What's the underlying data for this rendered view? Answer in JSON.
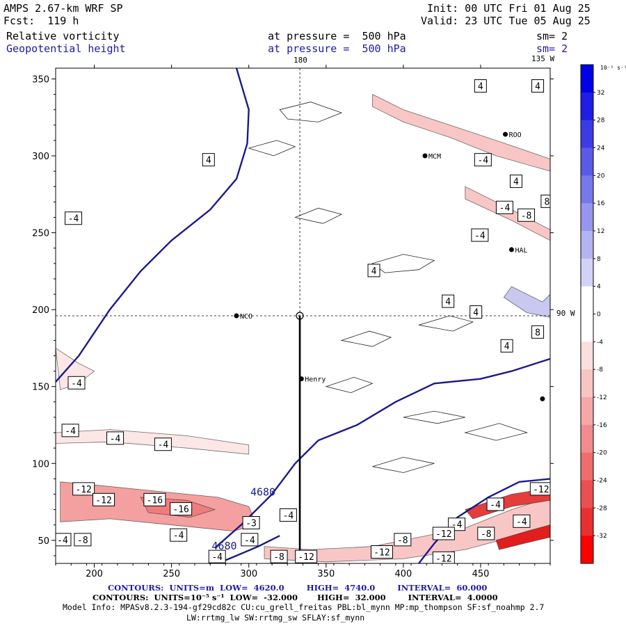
{
  "header": {
    "model": "AMPS 2.67-km WRF SP",
    "fcst": "Fcst:  119 h",
    "init": "Init: 00 UTC Fri 01 Aug 25",
    "valid": "Valid: 23 UTC Tue 05 Aug 25",
    "field1_name": "Relative vorticity",
    "field1_level": "at pressure =  500 hPa",
    "field1_sm": "sm= 2",
    "field2_name": "Geopotential height",
    "field2_level": "at pressure =  500 hPa",
    "field2_sm": "sm= 2"
  },
  "map_labels": {
    "lon_180": "180",
    "lon_135": "135 W",
    "lon_90": "90 W",
    "stations": [
      {
        "name": "NCO",
        "x": 292,
        "y": 196
      },
      {
        "name": "Henry",
        "x": 334,
        "y": 155
      },
      {
        "name": "MCM",
        "x": 414,
        "y": 300
      },
      {
        "name": "ROO",
        "x": 466,
        "y": 314
      },
      {
        "name": "HAL",
        "x": 470,
        "y": 239
      },
      {
        "name": "",
        "x": 490,
        "y": 142
      }
    ]
  },
  "colorbar": {
    "unit": "10⁻⁵ s⁻¹",
    "labels": [
      "32",
      "28",
      "24",
      "20",
      "16",
      "12",
      "8",
      "4",
      "0",
      "-4",
      "-8",
      "-12",
      "-16",
      "-20",
      "-24",
      "-28",
      "-32"
    ],
    "colors": [
      "#0000e6",
      "#1e1ee6",
      "#3c3ce6",
      "#5a5ae6",
      "#7878ea",
      "#9696ee",
      "#b4b4f2",
      "#d2d2f8",
      "#ffffff",
      "#ffffff",
      "#fbdede",
      "#f8c4c4",
      "#f5a8a8",
      "#f28c8c",
      "#ee6e6e",
      "#eb4f4f",
      "#e83030",
      "#ff0000"
    ]
  },
  "footer": {
    "line1": "CONTOURS:  UNITS=m  LOW=  4620.0        HIGH=  4740.0        INTERVAL=  60.000",
    "line2": "CONTOURS:  UNITS=10⁻⁵ s⁻¹  LOW=  -32.000       HIGH=  32.000        INTERVAL=  4.0000",
    "line3": "Model Info: MPASv8.2.3-194-gf29cd82c CU:cu_grell_freitas PBL:bl_mynn MP:mp_thompson SF:sf_noahmp 2.7",
    "line4": "LW:rrtmg_lw SW:rrtmg_sw SFLAY:sf_mynn"
  },
  "chart_data": {
    "type": "contour",
    "x_ticks": [
      200,
      250,
      300,
      350,
      400,
      450
    ],
    "y_ticks": [
      50,
      100,
      150,
      200,
      250,
      300,
      350
    ],
    "xlim": [
      175,
      495
    ],
    "ylim": [
      35,
      357
    ],
    "crosshair": {
      "x": 333,
      "y": 196
    },
    "height_contours": [
      {
        "label": "4680",
        "points": [
          [
            175,
            153
          ],
          [
            190,
            170
          ],
          [
            210,
            200
          ],
          [
            230,
            225
          ],
          [
            250,
            245
          ],
          [
            275,
            265
          ],
          [
            292,
            285
          ],
          [
            299,
            308
          ],
          [
            300,
            330
          ],
          [
            292,
            357
          ]
        ]
      },
      {
        "label": "4680",
        "points": [
          [
            278,
            45
          ],
          [
            295,
            60
          ],
          [
            315,
            80
          ],
          [
            330,
            100
          ],
          [
            345,
            115
          ],
          [
            370,
            125
          ],
          [
            395,
            140
          ],
          [
            420,
            152
          ],
          [
            450,
            155
          ],
          [
            470,
            160
          ],
          [
            495,
            168
          ]
        ]
      },
      {
        "label": "4680",
        "points": [
          [
            410,
            35
          ],
          [
            420,
            48
          ],
          [
            435,
            65
          ],
          [
            455,
            78
          ],
          [
            475,
            88
          ],
          [
            495,
            90
          ]
        ]
      },
      {
        "label": "4620",
        "points": [
          [
            280,
            35
          ],
          [
            292,
            40
          ],
          [
            306,
            46
          ],
          [
            320,
            53
          ]
        ]
      }
    ],
    "contour_labels": [
      {
        "v": "4",
        "x": 271,
        "y": 297
      },
      {
        "v": "-4",
        "x": 182,
        "y": 259
      },
      {
        "v": "-4",
        "x": 184,
        "y": 152
      },
      {
        "v": "-4",
        "x": 180,
        "y": 121
      },
      {
        "v": "-4",
        "x": 209,
        "y": 116
      },
      {
        "v": "-4",
        "x": 240,
        "y": 112
      },
      {
        "v": "-12",
        "x": 187,
        "y": 83
      },
      {
        "v": "-12",
        "x": 200,
        "y": 76
      },
      {
        "v": "-16",
        "x": 233,
        "y": 76
      },
      {
        "v": "-16",
        "x": 250,
        "y": 70
      },
      {
        "v": "-3",
        "x": 297,
        "y": 61
      },
      {
        "v": "-4",
        "x": 321,
        "y": 66
      },
      {
        "v": "-4",
        "x": 175,
        "y": 50
      },
      {
        "v": "-8",
        "x": 188,
        "y": 50
      },
      {
        "v": "-4",
        "x": 250,
        "y": 53
      },
      {
        "v": "-4",
        "x": 296,
        "y": 50
      },
      {
        "v": "-4",
        "x": 275,
        "y": 39
      },
      {
        "v": "-8",
        "x": 315,
        "y": 39
      },
      {
        "v": "-12",
        "x": 331,
        "y": 39
      },
      {
        "v": "-12",
        "x": 380,
        "y": 42
      },
      {
        "v": "-8",
        "x": 395,
        "y": 50
      },
      {
        "v": "-4",
        "x": 430,
        "y": 60
      },
      {
        "v": "-12",
        "x": 420,
        "y": 54
      },
      {
        "v": "-8",
        "x": 449,
        "y": 54
      },
      {
        "v": "-4",
        "x": 455,
        "y": 73
      },
      {
        "v": "-4",
        "x": 472,
        "y": 62
      },
      {
        "v": "-12",
        "x": 483,
        "y": 83
      },
      {
        "v": "-12",
        "x": 420,
        "y": 38
      },
      {
        "v": "4",
        "x": 378,
        "y": 225
      },
      {
        "v": "4",
        "x": 426,
        "y": 205
      },
      {
        "v": "4",
        "x": 444,
        "y": 198
      },
      {
        "v": "4",
        "x": 464,
        "y": 176
      },
      {
        "v": "8",
        "x": 484,
        "y": 185
      },
      {
        "v": "-4",
        "x": 445,
        "y": 248
      },
      {
        "v": "-4",
        "x": 461,
        "y": 266
      },
      {
        "v": "-8",
        "x": 475,
        "y": 261
      },
      {
        "v": "-4",
        "x": 502,
        "y": 255
      },
      {
        "v": "-4",
        "x": 527,
        "y": 246
      },
      {
        "v": "8",
        "x": 490,
        "y": 270
      },
      {
        "v": "4",
        "x": 470,
        "y": 283
      },
      {
        "v": "-4",
        "x": 447,
        "y": 297
      },
      {
        "v": "4",
        "x": 447,
        "y": 345
      },
      {
        "v": "4",
        "x": 484,
        "y": 345
      },
      {
        "v": "-4",
        "x": 540,
        "y": 248
      }
    ],
    "vorticity_bands": [
      {
        "value": -12,
        "points": [
          [
            178,
            88
          ],
          [
            200,
            86
          ],
          [
            240,
            82
          ],
          [
            280,
            78
          ],
          [
            300,
            72
          ],
          [
            305,
            60
          ],
          [
            290,
            56
          ],
          [
            250,
            60
          ],
          [
            210,
            64
          ],
          [
            178,
            62
          ]
        ]
      },
      {
        "value": -16,
        "points": [
          [
            230,
            78
          ],
          [
            260,
            76
          ],
          [
            278,
            70
          ],
          [
            262,
            65
          ],
          [
            235,
            68
          ]
        ]
      },
      {
        "value": -8,
        "points": [
          [
            310,
            46
          ],
          [
            340,
            44
          ],
          [
            380,
            46
          ],
          [
            410,
            52
          ],
          [
            440,
            58
          ],
          [
            470,
            70
          ],
          [
            495,
            78
          ],
          [
            495,
            60
          ],
          [
            470,
            52
          ],
          [
            440,
            44
          ],
          [
            400,
            38
          ],
          [
            350,
            36
          ],
          [
            310,
            38
          ]
        ]
      },
      {
        "value": -24,
        "points": [
          [
            440,
            70
          ],
          [
            470,
            80
          ],
          [
            495,
            84
          ],
          [
            495,
            76
          ],
          [
            470,
            72
          ],
          [
            445,
            64
          ]
        ]
      },
      {
        "value": -28,
        "points": [
          [
            460,
            50
          ],
          [
            480,
            56
          ],
          [
            495,
            60
          ],
          [
            495,
            52
          ],
          [
            478,
            48
          ],
          [
            462,
            44
          ]
        ]
      },
      {
        "value": -8,
        "points": [
          [
            380,
            340
          ],
          [
            400,
            330
          ],
          [
            430,
            320
          ],
          [
            460,
            310
          ],
          [
            495,
            298
          ],
          [
            495,
            290
          ],
          [
            460,
            300
          ],
          [
            430,
            312
          ],
          [
            400,
            322
          ],
          [
            380,
            332
          ]
        ]
      },
      {
        "value": -8,
        "points": [
          [
            440,
            280
          ],
          [
            470,
            265
          ],
          [
            495,
            252
          ],
          [
            495,
            245
          ],
          [
            470,
            258
          ],
          [
            440,
            272
          ]
        ]
      },
      {
        "value": 8,
        "points": [
          [
            470,
            215
          ],
          [
            490,
            205
          ],
          [
            495,
            210
          ],
          [
            495,
            195
          ],
          [
            480,
            198
          ],
          [
            465,
            208
          ]
        ]
      },
      {
        "value": -4,
        "points": [
          [
            175,
            120
          ],
          [
            210,
            122
          ],
          [
            260,
            118
          ],
          [
            300,
            112
          ],
          [
            300,
            106
          ],
          [
            260,
            110
          ],
          [
            210,
            114
          ],
          [
            175,
            113
          ]
        ]
      },
      {
        "value": -4,
        "points": [
          [
            175,
            175
          ],
          [
            190,
            165
          ],
          [
            200,
            160
          ],
          [
            190,
            152
          ],
          [
            178,
            148
          ]
        ]
      }
    ]
  }
}
